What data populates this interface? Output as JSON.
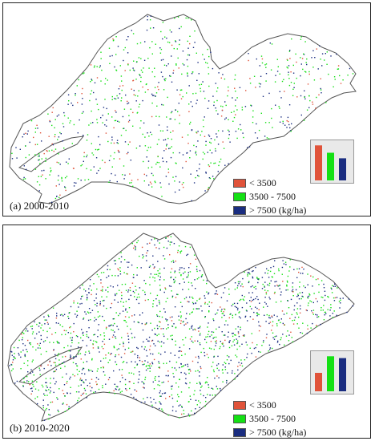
{
  "colors": {
    "low": "#e0533a",
    "mid": "#14e014",
    "high": "#1a2d80",
    "outline": "#555555",
    "chart_bg": "#e9e9e9"
  },
  "legend": {
    "low": "< 3500",
    "mid": "3500 - 7500",
    "high": "> 7500 (kg/ha)"
  },
  "panels": [
    {
      "caption": "(a) 2000-2010",
      "chart_data": {
        "type": "bar",
        "categories": [
          "< 3500",
          "3500 - 7500",
          "> 7500 (kg/ha)"
        ],
        "values": [
          0.76,
          0.6,
          0.48
        ],
        "ylim": [
          0,
          0.8
        ]
      }
    },
    {
      "caption": "(b) 2010-2020",
      "chart_data": {
        "type": "bar",
        "categories": [
          "< 3500",
          "3500 - 7500",
          "> 7500 (kg/ha)"
        ],
        "values": [
          0.4,
          0.76,
          0.72
        ],
        "ylim": [
          0,
          0.8
        ]
      }
    }
  ]
}
